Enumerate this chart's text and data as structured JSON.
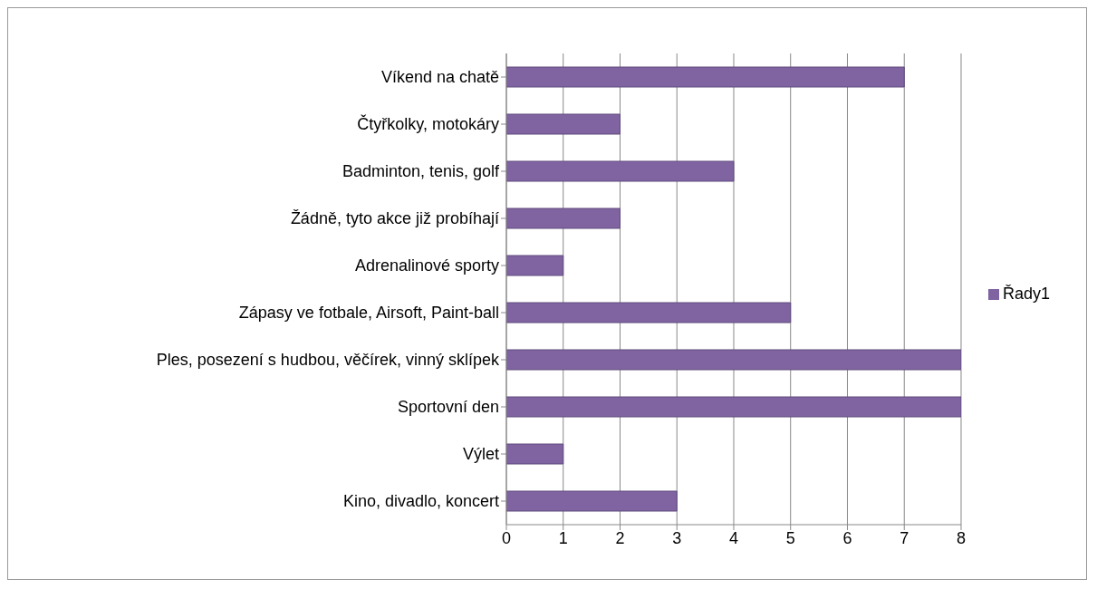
{
  "chart_data": {
    "type": "bar",
    "orientation": "horizontal",
    "categories": [
      "Víkend na chatě",
      "Čtyřkolky, motokáry",
      "Badminton, tenis, golf",
      "Žádně, tyto akce již probíhají",
      "Adrenalinové sporty",
      "Zápasy ve fotbale, Airsoft, Paint-ball",
      "Ples, posezení s hudbou, věčírek, vinný sklípek",
      "Sportovní den",
      "Výlet",
      "Kino, divadlo, koncert"
    ],
    "series": [
      {
        "name": "Řady1",
        "color": "#8064a2",
        "values": [
          7,
          2,
          4,
          2,
          1,
          5,
          8,
          8,
          1,
          3
        ]
      }
    ],
    "xlim": [
      0,
      8
    ],
    "xticks": [
      0,
      1,
      2,
      3,
      4,
      5,
      6,
      7,
      8
    ],
    "grid": "x",
    "legend": "right"
  }
}
